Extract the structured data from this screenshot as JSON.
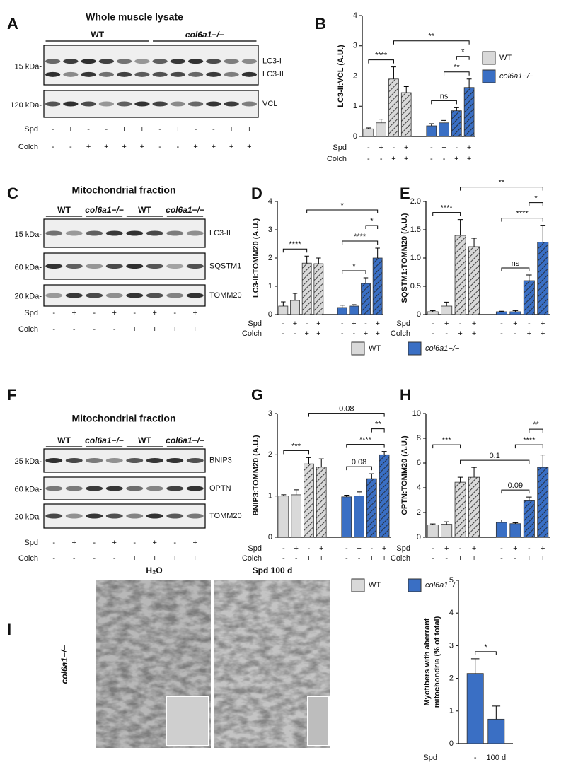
{
  "panel_labels": [
    "A",
    "B",
    "C",
    "D",
    "E",
    "F",
    "G",
    "H",
    "I"
  ],
  "blots": [
    {
      "title": "Whole muscle lysate",
      "groups": [
        "WT",
        "col6a1−/−"
      ],
      "boxes": [
        {
          "marker": "15 kDa-",
          "bands": [
            "LC3-I",
            "LC3-II"
          ]
        },
        {
          "marker": "120 kDa-",
          "bands": [
            "VCL"
          ]
        }
      ],
      "row_labels": [
        "Spd",
        "Colch"
      ],
      "spd": [
        "-",
        "+",
        "-",
        "-",
        "+",
        "+",
        "-",
        "+",
        "-",
        "-",
        "+",
        "+"
      ],
      "colch": [
        "-",
        "-",
        "+",
        "+",
        "+",
        "+",
        "-",
        "-",
        "+",
        "+",
        "+",
        "+"
      ]
    },
    {
      "title": "Mitochondrial fraction",
      "groups": [
        "WT",
        "col6a1−/−",
        "WT",
        "col6a1−/−"
      ],
      "boxes": [
        {
          "marker": "15 kDa-",
          "bands": [
            "LC3-II"
          ]
        },
        {
          "marker": "60 kDa-",
          "bands": [
            "SQSTM1"
          ]
        },
        {
          "marker": "20 kDa-",
          "bands": [
            "TOMM20"
          ]
        }
      ],
      "row_labels": [
        "Spd",
        "Colch"
      ],
      "spd": [
        "-",
        "+",
        "-",
        "+",
        "-",
        "+",
        "-",
        "+"
      ],
      "colch": [
        "-",
        "-",
        "-",
        "-",
        "+",
        "+",
        "+",
        "+"
      ]
    },
    {
      "title": "Mitochondrial fraction",
      "groups": [
        "WT",
        "col6a1−/−",
        "WT",
        "col6a1−/−"
      ],
      "boxes": [
        {
          "marker": "25 kDa-",
          "bands": [
            "BNIP3"
          ]
        },
        {
          "marker": "60 kDa-",
          "bands": [
            "OPTN"
          ]
        },
        {
          "marker": "20 kDa-",
          "bands": [
            "TOMM20"
          ]
        }
      ],
      "row_labels": [
        "Spd",
        "Colch"
      ],
      "spd": [
        "-",
        "+",
        "-",
        "+",
        "-",
        "+",
        "-",
        "+"
      ],
      "colch": [
        "-",
        "-",
        "-",
        "-",
        "+",
        "+",
        "+",
        "+"
      ]
    }
  ],
  "micrographs": {
    "labels": [
      "H₂O",
      "Spd 100 d"
    ],
    "genotype": "col6a1−/−"
  },
  "chart_data": [
    {
      "type": "bar",
      "ylabel": "LC3-II:VCL (A.U.)",
      "ylim": [
        0,
        4
      ],
      "yticks": [
        0,
        1,
        2,
        3,
        4
      ],
      "row_labels": [
        "Spd",
        "Colch"
      ],
      "spd": [
        "-",
        "+",
        "-",
        "+",
        "-",
        "+",
        "-",
        "+"
      ],
      "colch": [
        "-",
        "-",
        "+",
        "+",
        "-",
        "-",
        "+",
        "+"
      ],
      "series": [
        {
          "name": "WT",
          "color": "#d9d9d9",
          "values": [
            0.25,
            0.45,
            1.9,
            1.45
          ],
          "errors": [
            0.03,
            0.12,
            0.4,
            0.2
          ]
        },
        {
          "name": "col6a1−/−",
          "color": "#3a6fc4",
          "values": [
            0.35,
            0.45,
            0.85,
            1.62
          ],
          "errors": [
            0.07,
            0.08,
            0.1,
            0.28
          ]
        }
      ],
      "annotations": [
        {
          "text": "ns",
          "from": 4,
          "to": 6
        },
        {
          "text": "**",
          "from": 5,
          "to": 7
        },
        {
          "text": "*",
          "from": 6,
          "to": 7
        },
        {
          "text": "****",
          "from": 0,
          "to": 2
        },
        {
          "text": "**",
          "from": 2,
          "to": 7
        }
      ]
    },
    {
      "type": "bar",
      "ylabel": "LC3-II:TOMM20 (A.U.)",
      "ylim": [
        0,
        4
      ],
      "yticks": [
        0,
        1,
        2,
        3,
        4
      ],
      "row_labels": [
        "Spd",
        "Colch"
      ],
      "spd": [
        "-",
        "+",
        "-",
        "+",
        "-",
        "+",
        "-",
        "+"
      ],
      "colch": [
        "-",
        "-",
        "+",
        "+",
        "-",
        "-",
        "+",
        "+"
      ],
      "series": [
        {
          "color": "#d9d9d9",
          "values": [
            0.3,
            0.5,
            1.82,
            1.8
          ],
          "errors": [
            0.15,
            0.25,
            0.25,
            0.2
          ]
        },
        {
          "color": "#3a6fc4",
          "values": [
            0.25,
            0.3,
            1.1,
            2.0
          ],
          "errors": [
            0.08,
            0.05,
            0.2,
            0.35
          ]
        }
      ],
      "annotations": [
        {
          "text": "*",
          "from": 4,
          "to": 6
        },
        {
          "text": "****",
          "from": 4,
          "to": 7
        },
        {
          "text": "*",
          "from": 6,
          "to": 7
        },
        {
          "text": "****",
          "from": 0,
          "to": 2
        },
        {
          "text": "*",
          "from": 2,
          "to": 7
        }
      ]
    },
    {
      "type": "bar",
      "ylabel": "SQSTM1:TOMM20 (A.U.)",
      "ylim": [
        0,
        2
      ],
      "yticks": [
        0,
        0.5,
        {
          "value": 1,
          "label": "1.0"
        },
        1.5,
        {
          "value": 2,
          "label": "2.0"
        }
      ],
      "row_labels": [
        "Spd",
        "Colch"
      ],
      "spd": [
        "-",
        "+",
        "-",
        "+",
        "-",
        "+",
        "-",
        "+"
      ],
      "colch": [
        "-",
        "-",
        "+",
        "+",
        "-",
        "-",
        "+",
        "+"
      ],
      "series": [
        {
          "name": "WT",
          "color": "#d9d9d9",
          "values": [
            0.05,
            0.15,
            1.4,
            1.2
          ],
          "errors": [
            0.02,
            0.07,
            0.28,
            0.15
          ]
        },
        {
          "name": "col6a1−/−",
          "color": "#3a6fc4",
          "values": [
            0.05,
            0.05,
            0.6,
            1.28
          ],
          "errors": [
            0.01,
            0.02,
            0.1,
            0.3
          ]
        }
      ],
      "annotations": [
        {
          "text": "ns",
          "from": 4,
          "to": 6
        },
        {
          "text": "****",
          "from": 4,
          "to": 7
        },
        {
          "text": "*",
          "from": 6,
          "to": 7
        },
        {
          "text": "****",
          "from": 0,
          "to": 2
        },
        {
          "text": "**",
          "from": 2,
          "to": 7
        }
      ]
    },
    {
      "type": "bar",
      "ylabel": "BNIP3:TOMM20 (A.U.)",
      "ylim": [
        0,
        3
      ],
      "yticks": [
        0,
        1,
        2,
        3
      ],
      "row_labels": [
        "Spd",
        "Colch"
      ],
      "spd": [
        "-",
        "+",
        "-",
        "+",
        "-",
        "+",
        "-",
        "+"
      ],
      "colch": [
        "-",
        "-",
        "+",
        "+",
        "-",
        "-",
        "+",
        "+"
      ],
      "series": [
        {
          "color": "#d9d9d9",
          "values": [
            1.0,
            1.03,
            1.78,
            1.7
          ],
          "errors": [
            0.03,
            0.12,
            0.15,
            0.2
          ]
        },
        {
          "color": "#3a6fc4",
          "values": [
            0.98,
            1.0,
            1.42,
            2.0
          ],
          "errors": [
            0.04,
            0.1,
            0.12,
            0.08
          ]
        }
      ],
      "annotations": [
        {
          "text": "0.08",
          "from": 4,
          "to": 6
        },
        {
          "text": "****",
          "from": 4,
          "to": 7
        },
        {
          "text": "**",
          "from": 6,
          "to": 7
        },
        {
          "text": "***",
          "from": 0,
          "to": 2
        },
        {
          "text": "0.08",
          "from": 2,
          "to": 7
        }
      ]
    },
    {
      "type": "bar",
      "ylabel": "OPTN:TOMM20 (A.U.)",
      "ylim": [
        0,
        10
      ],
      "yticks": [
        0,
        2,
        4,
        6,
        8,
        10
      ],
      "row_labels": [
        "Spd",
        "Colch"
      ],
      "spd": [
        "-",
        "+",
        "-",
        "+",
        "-",
        "+",
        "-",
        "+"
      ],
      "colch": [
        "-",
        "-",
        "+",
        "+",
        "-",
        "-",
        "+",
        "+"
      ],
      "series": [
        {
          "name": "WT",
          "color": "#d9d9d9",
          "values": [
            1.0,
            1.05,
            4.45,
            4.85
          ],
          "errors": [
            0.08,
            0.2,
            0.4,
            0.8
          ]
        },
        {
          "name": "col6a1−/−",
          "color": "#3a6fc4",
          "values": [
            1.2,
            1.1,
            2.95,
            5.65
          ],
          "errors": [
            0.2,
            0.08,
            0.3,
            1.0
          ]
        }
      ],
      "annotations": [
        {
          "text": "0.09",
          "from": 4,
          "to": 6
        },
        {
          "text": "0.1",
          "from": 2,
          "to": 6
        },
        {
          "text": "****",
          "from": 5,
          "to": 7
        },
        {
          "text": "**",
          "from": 6,
          "to": 7
        },
        {
          "text": "***",
          "from": 0,
          "to": 2
        }
      ]
    },
    {
      "type": "bar",
      "ylabel": [
        "Myofibers with aberrant",
        "mitochondria (% of total)"
      ],
      "ylim": [
        0,
        5
      ],
      "yticks": [
        0,
        1,
        2,
        3,
        4,
        5
      ],
      "row_labels": [
        "Spd"
      ],
      "spd": [
        "-",
        "100 d"
      ],
      "color": "#3a6fc4",
      "values": [
        2.15,
        0.75
      ],
      "errors": [
        0.45,
        0.4
      ],
      "annotations": [
        {
          "text": "*",
          "from": 0,
          "to": 1
        }
      ]
    }
  ]
}
